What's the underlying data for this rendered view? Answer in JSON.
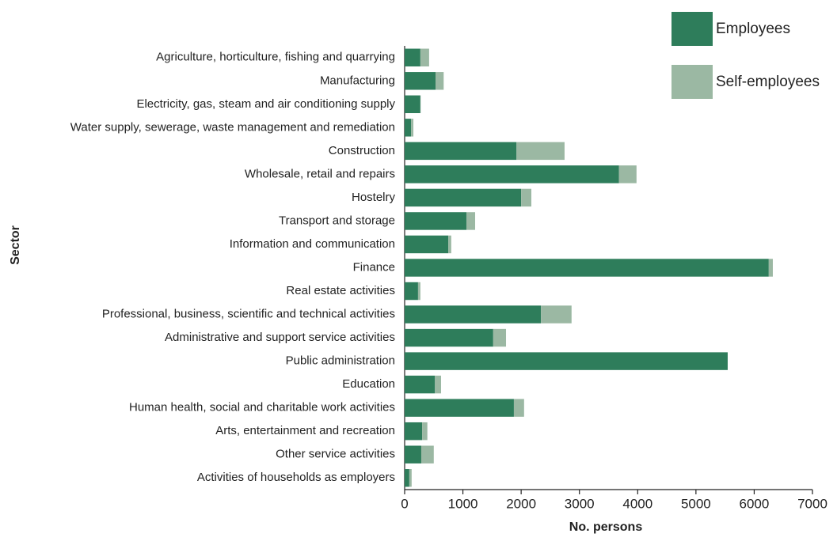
{
  "chart_data": {
    "type": "bar",
    "orientation": "horizontal",
    "stacked": true,
    "x_label": "No. persons",
    "y_label": "Sector",
    "categories": [
      "Agriculture, horticulture, fishing and quarrying",
      "Manufacturing",
      "Electricity, gas, steam and air conditioning supply",
      "Water supply, sewerage, waste management and remediation",
      "Construction",
      "Wholesale, retail and repairs",
      "Hostelry",
      "Transport and storage",
      "Information and communication",
      "Finance",
      "Real estate activities",
      "Professional, business, scientific and technical activities",
      "Administrative and support service activities",
      "Public administration",
      "Education",
      "Human health, social and charitable work activities",
      "Arts, entertainment and recreation",
      "Other service activities",
      "Activities of households as employers"
    ],
    "series": [
      {
        "name": "Employees",
        "color": "#2e7d5b",
        "values": [
          270,
          530,
          270,
          110,
          1920,
          3680,
          2000,
          1060,
          750,
          6250,
          230,
          2340,
          1520,
          5545,
          520,
          1875,
          300,
          285,
          80
        ]
      },
      {
        "name": "Self-employees",
        "color": "#9bb8a3",
        "values": [
          150,
          140,
          5,
          40,
          825,
          300,
          175,
          150,
          50,
          70,
          40,
          525,
          220,
          0,
          105,
          175,
          90,
          215,
          40
        ]
      }
    ],
    "xlim": [
      0,
      7000
    ],
    "xticks": [
      0,
      1000,
      2000,
      3000,
      4000,
      5000,
      6000,
      7000
    ],
    "legend": "top-right",
    "grid": false
  }
}
